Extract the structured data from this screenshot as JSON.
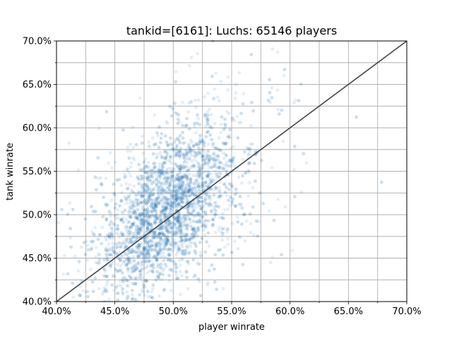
{
  "chart_data": {
    "type": "scatter",
    "title": "tankid=[6161]: Luchs: 65146 players",
    "xlabel": "player winrate",
    "ylabel": "tank winrate",
    "xlim": [
      0.4,
      0.7
    ],
    "ylim": [
      0.4,
      0.7
    ],
    "xticks": [
      "40.0%",
      "45.0%",
      "50.0%",
      "55.0%",
      "60.0%",
      "65.0%",
      "70.0%"
    ],
    "yticks": [
      "40.0%",
      "45.0%",
      "50.0%",
      "55.0%",
      "60.0%",
      "65.0%",
      "70.0%"
    ],
    "grid": true,
    "point_color": "#1f77b4",
    "point_alpha": 0.12,
    "reference_line": {
      "x": [
        0.4,
        0.7
      ],
      "y": [
        0.4,
        0.7
      ],
      "color": "#444444"
    },
    "cloud": {
      "center_x": 0.492,
      "center_y": 0.505,
      "spread_x": 0.028,
      "spread_y": 0.05,
      "correlation": 0.55,
      "sample_count": 3600
    }
  }
}
